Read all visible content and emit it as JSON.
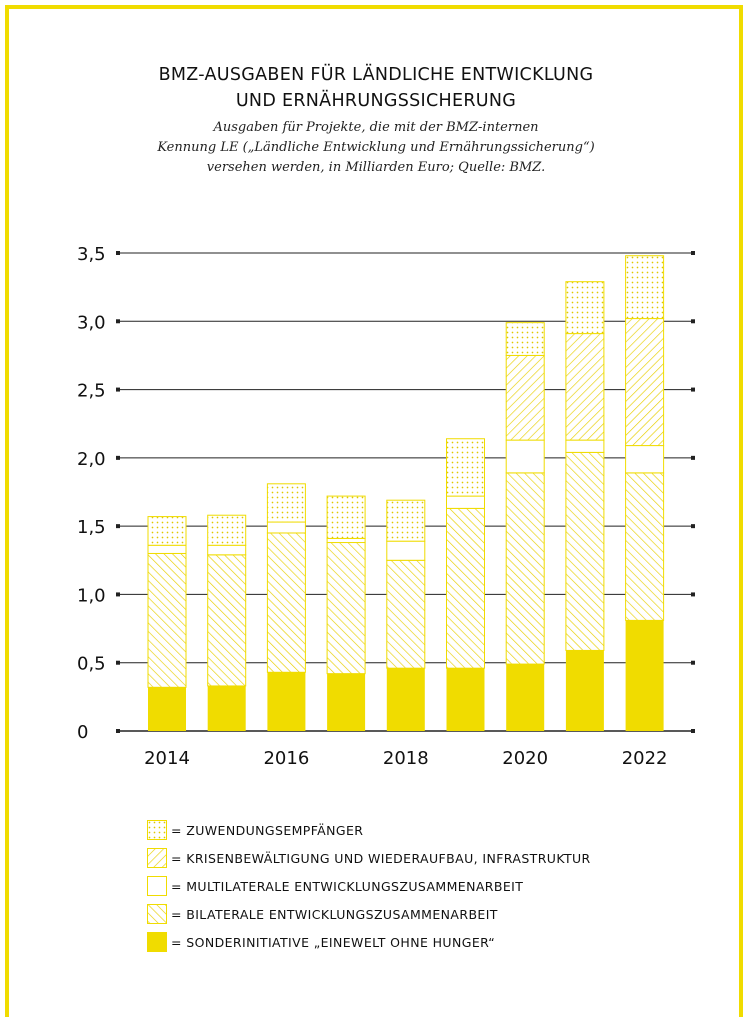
{
  "title_lines": [
    "BMZ-AUSGABEN FÜR LÄNDLICHE ENTWICKLUNG",
    "UND ERNÄHRUNGSSICHERUNG"
  ],
  "subtitle_lines": [
    "Ausgaben für Projekte, die mit der BMZ-internen",
    "Kennung LE („Ländliche Entwicklung und Ernährungssicherung“)",
    "versehen werden, in Milliarden Euro; Quelle: BMZ."
  ],
  "colors": {
    "accent": "#f0dc00",
    "hatch": "#e8cf00",
    "grid": "#222222",
    "text": "#111111"
  },
  "chart_data": {
    "type": "bar",
    "stacked": true,
    "categories": [
      "2014",
      "2015",
      "2016",
      "2017",
      "2018",
      "2019",
      "2020",
      "2021",
      "2022"
    ],
    "x_tick_labels": [
      "2014",
      "",
      "2016",
      "",
      "2018",
      "",
      "2020",
      "",
      "2022"
    ],
    "y_tick_labels": [
      "0",
      "0,5",
      "1,0",
      "1,5",
      "2,0",
      "2,5",
      "3,0",
      "3,5"
    ],
    "y_ticks": [
      0,
      0.5,
      1.0,
      1.5,
      2.0,
      2.5,
      3.0,
      3.5
    ],
    "ylim": [
      0,
      3.5
    ],
    "grid": true,
    "series": [
      {
        "name": "SONDERINITIATIVE „EINEWELT OHNE HUNGER“",
        "pattern": "solid",
        "values": [
          0.32,
          0.33,
          0.43,
          0.42,
          0.46,
          0.46,
          0.49,
          0.59,
          0.81
        ]
      },
      {
        "name": "BILATERALE ENTWICKLUNGSZUSAMMENARBEIT",
        "pattern": "hatch-forward",
        "values": [
          0.98,
          0.96,
          1.02,
          0.96,
          0.79,
          1.17,
          1.4,
          1.45,
          1.08
        ]
      },
      {
        "name": "MULTILATERALE ENTWICKLUNGSZUSAMMENARBEIT",
        "pattern": "blank",
        "values": [
          0.06,
          0.07,
          0.08,
          0.03,
          0.14,
          0.09,
          0.24,
          0.09,
          0.2
        ]
      },
      {
        "name": "KRISENBEWÄLTIGUNG UND WIEDERAUFBAU, INFRASTRUKTUR",
        "pattern": "hatch-back",
        "values": [
          0.0,
          0.0,
          0.0,
          0.0,
          0.0,
          0.0,
          0.62,
          0.78,
          0.93
        ]
      },
      {
        "name": "ZUWENDUNGSEMPFÄNGER",
        "pattern": "dots",
        "values": [
          0.21,
          0.22,
          0.28,
          0.31,
          0.3,
          0.42,
          0.24,
          0.38,
          0.46
        ]
      }
    ]
  },
  "legend_items": [
    {
      "pattern": "dots",
      "label": "= ZUWENDUNGSEMPFÄNGER"
    },
    {
      "pattern": "hatch-back",
      "label": "= KRISENBEWÄLTIGUNG UND WIEDERAUFBAU, INFRASTRUKTUR"
    },
    {
      "pattern": "blank",
      "label": "= MULTILATERALE ENTWICKLUNGSZUSAMMENARBEIT"
    },
    {
      "pattern": "hatch-forward",
      "label": "= BILATERALE ENTWICKLUNGSZUSAMMENARBEIT"
    },
    {
      "pattern": "solid",
      "label": "= SONDERINITIATIVE „EINEWELT OHNE HUNGER“"
    }
  ]
}
